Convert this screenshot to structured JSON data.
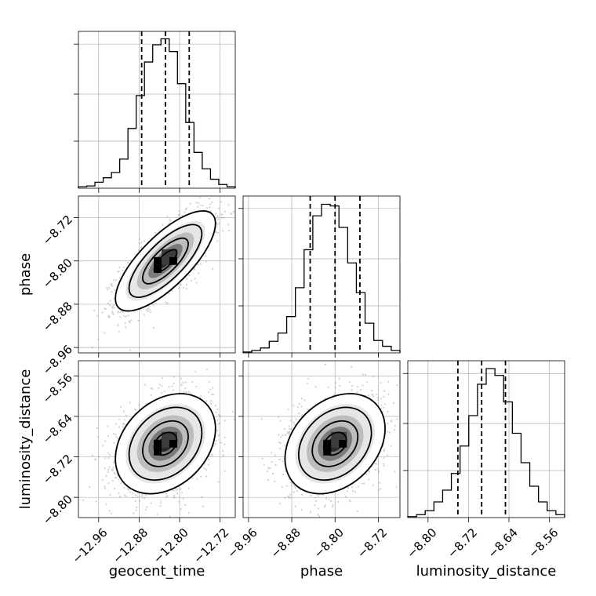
{
  "chart_data": {
    "type": "corner",
    "parameters": [
      "geocent_time",
      "phase",
      "luminosity_distance"
    ],
    "grid": true,
    "histograms": [
      {
        "parameter": "geocent_time",
        "range": [
          -13.0,
          -12.69
        ],
        "counts": [
          2,
          3,
          8,
          14,
          21,
          39,
          80,
          124,
          169,
          192,
          200,
          183,
          140,
          88,
          48,
          26,
          12,
          5,
          2
        ],
        "quantiles": [
          -12.875,
          -12.828,
          -12.781
        ],
        "ylim": [
          0,
          210
        ]
      },
      {
        "parameter": "phase",
        "range": [
          -8.97,
          -8.68
        ],
        "counts": [
          1,
          3,
          6,
          14,
          24,
          44,
          79,
          125,
          166,
          180,
          178,
          152,
          109,
          73,
          36,
          15,
          8,
          3
        ],
        "quantiles": [
          -8.846,
          -8.8,
          -8.754
        ],
        "ylim": [
          0,
          190
        ]
      },
      {
        "parameter": "luminosity_distance",
        "range": [
          -8.84,
          -8.53
        ],
        "counts": [
          1,
          3,
          7,
          16,
          28,
          45,
          73,
          104,
          136,
          152,
          145,
          118,
          86,
          56,
          32,
          16,
          7,
          3
        ],
        "quantiles": [
          -8.741,
          -8.694,
          -8.647
        ],
        "ylim": [
          0,
          160
        ]
      }
    ],
    "scatter_2d": [
      {
        "x_param": "geocent_time",
        "y_param": "phase",
        "xlim": [
          -13.0,
          -12.69
        ],
        "ylim": [
          -8.97,
          -8.68
        ],
        "x_ticks": [
          -12.96,
          -12.88,
          -12.8,
          -12.72
        ],
        "y_ticks": [
          -8.96,
          -8.88,
          -8.8,
          -8.72
        ],
        "x_mean": -12.828,
        "y_mean": -8.8,
        "correlation": 0.75
      },
      {
        "x_param": "geocent_time",
        "y_param": "luminosity_distance",
        "xlim": [
          -13.0,
          -12.69
        ],
        "ylim": [
          -8.84,
          -8.53
        ],
        "x_ticks": [
          -12.96,
          -12.88,
          -12.8,
          -12.72
        ],
        "y_ticks": [
          -8.8,
          -8.72,
          -8.64,
          -8.56
        ],
        "x_mean": -12.828,
        "y_mean": -8.694,
        "correlation": 0.3
      },
      {
        "x_param": "phase",
        "y_param": "luminosity_distance",
        "xlim": [
          -8.97,
          -8.68
        ],
        "ylim": [
          -8.84,
          -8.53
        ],
        "x_ticks": [
          -8.96,
          -8.88,
          -8.8,
          -8.72
        ],
        "y_ticks": [
          -8.8,
          -8.72,
          -8.64,
          -8.56
        ],
        "x_mean": -8.8,
        "y_mean": -8.694,
        "correlation": 0.3
      }
    ],
    "x_tick_labels": {
      "geocent_time": [
        "−12.96",
        "−12.88",
        "−12.80",
        "−12.72"
      ],
      "phase": [
        "−8.96",
        "−8.88",
        "−8.80",
        "−8.72"
      ],
      "luminosity_distance": [
        "−8.80",
        "−8.72",
        "−8.64",
        "−8.56"
      ]
    },
    "y_tick_labels": {
      "phase": [
        "−8.96",
        "−8.88",
        "−8.80",
        "−8.72"
      ],
      "luminosity_distance": [
        "−8.80",
        "−8.72",
        "−8.64",
        "−8.56"
      ]
    },
    "x_tick_values": {
      "geocent_time": [
        -12.96,
        -12.88,
        -12.8,
        -12.72
      ],
      "phase": [
        -8.96,
        -8.88,
        -8.8,
        -8.72
      ],
      "luminosity_distance": [
        -8.8,
        -8.72,
        -8.64,
        -8.56
      ]
    },
    "y_tick_values": {
      "phase": [
        -8.96,
        -8.88,
        -8.8,
        -8.72
      ],
      "luminosity_distance": [
        -8.8,
        -8.72,
        -8.64,
        -8.56
      ]
    },
    "axis_labels": {
      "bottom": [
        "geocent_time",
        "phase",
        "luminosity_distance"
      ],
      "left": [
        "phase",
        "luminosity_distance"
      ]
    }
  }
}
